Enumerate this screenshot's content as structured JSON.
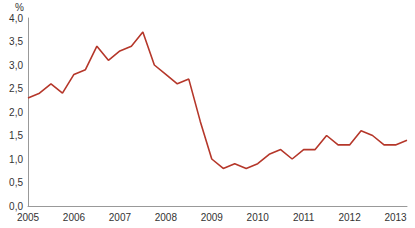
{
  "chart_data": {
    "type": "line",
    "ylabel": "%",
    "categories": [
      "2005",
      null,
      null,
      null,
      "2006",
      null,
      null,
      null,
      "2007",
      null,
      null,
      null,
      "2008",
      null,
      null,
      null,
      "2009",
      null,
      null,
      null,
      "2010",
      null,
      null,
      null,
      "2011",
      null,
      null,
      null,
      "2012",
      null,
      null,
      null,
      "2013",
      null
    ],
    "values": [
      2.3,
      2.4,
      2.6,
      2.4,
      2.8,
      2.9,
      3.4,
      3.1,
      3.3,
      3.4,
      3.7,
      3.0,
      2.8,
      2.6,
      2.7,
      1.8,
      1.0,
      0.8,
      0.9,
      0.8,
      0.9,
      1.1,
      1.2,
      1.0,
      1.2,
      1.2,
      1.5,
      1.3,
      1.3,
      1.6,
      1.5,
      1.3,
      1.3,
      1.4
    ],
    "color": "#b5372a",
    "ylim": [
      0,
      4
    ],
    "yticks": [
      {
        "value": 0,
        "label": "0,0"
      },
      {
        "value": 0.5,
        "label": "0,5"
      },
      {
        "value": 1,
        "label": "1,0"
      },
      {
        "value": 1.5,
        "label": "1,5"
      },
      {
        "value": 2,
        "label": "2,0"
      },
      {
        "value": 2.5,
        "label": "2,5"
      },
      {
        "value": 3,
        "label": "3,0"
      },
      {
        "value": 3.5,
        "label": "3,5"
      },
      {
        "value": 4,
        "label": "4,0"
      }
    ],
    "grid": false
  }
}
